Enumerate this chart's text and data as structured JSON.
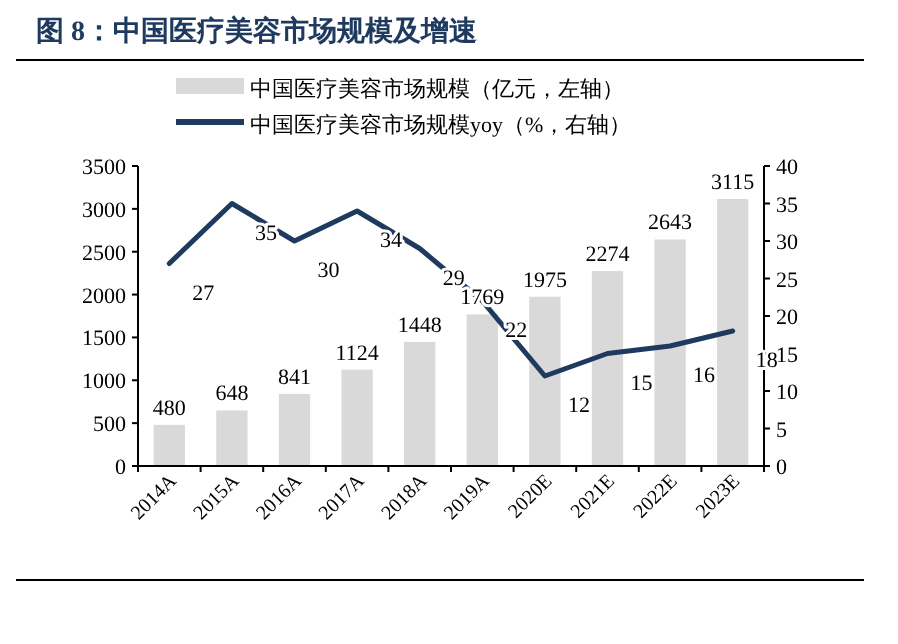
{
  "chart_data": {
    "type": "bar",
    "title": "图 8：中国医疗美容市场规模及增速",
    "categories": [
      "2014A",
      "2015A",
      "2016A",
      "2017A",
      "2018A",
      "2019A",
      "2020E",
      "2021E",
      "2022E",
      "2023E"
    ],
    "series": [
      {
        "name": "中国医疗美容市场规模（亿元，左轴）",
        "color": "#d9d9d9",
        "values": [
          480,
          648,
          841,
          1124,
          1448,
          1769,
          1975,
          2274,
          2643,
          3115
        ]
      },
      {
        "name": "中国医疗美容市场规模yoy（%，右轴）",
        "type": "line",
        "axis": "y2",
        "color": "#1f3a5f",
        "values": [
          27,
          35,
          30,
          34,
          29,
          22,
          12,
          15,
          16,
          18
        ]
      }
    ],
    "ylim": [
      0,
      3500
    ],
    "yticks": [
      0,
      500,
      1000,
      1500,
      2000,
      2500,
      3000,
      3500
    ],
    "y2lim": [
      0,
      40
    ],
    "y2ticks": [
      0,
      5,
      10,
      15,
      20,
      25,
      30,
      35,
      40
    ],
    "data_labels": true,
    "legend": "top",
    "grid": false,
    "marker": "none",
    "line_style": "solid"
  }
}
